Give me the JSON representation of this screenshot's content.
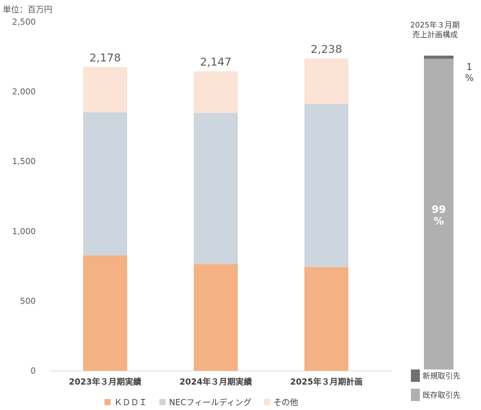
{
  "unit_label": "単位：百万円",
  "chart_data": [
    {
      "type": "bar",
      "stacked": true,
      "categories": [
        "2023年３月期実績",
        "2024年３月期実績",
        "2025年３月期計画"
      ],
      "series": [
        {
          "name": "ＫＤＤＩ",
          "values": [
            828,
            766,
            744
          ],
          "color": "#f4b183"
        },
        {
          "name": "NECフィールディング",
          "values": [
            1025,
            1083,
            1168
          ],
          "color": "#cdd5de"
        },
        {
          "name": "その他",
          "values": [
            325,
            298,
            326
          ],
          "color": "#fbe3d5"
        }
      ],
      "totals": [
        "2,178",
        "2,147",
        "2,238"
      ],
      "ylim": [
        0,
        2500
      ],
      "yticks": [
        0,
        500,
        1000,
        1500,
        2000,
        2500
      ],
      "ytick_labels": [
        "0",
        "500",
        "1,000",
        "1,500",
        "2,000",
        "2,500"
      ],
      "grid": false,
      "legend_position": "bottom"
    },
    {
      "type": "bar",
      "stacked": true,
      "title": "2025年３月期\n売上計画構成",
      "categories": [
        "2025年３月期"
      ],
      "series": [
        {
          "name": "既存取引先",
          "values": [
            99
          ],
          "color": "#b0b0b0",
          "label": "99\n%"
        },
        {
          "name": "新規取引先",
          "values": [
            1
          ],
          "color": "#707070",
          "label": "1\n%"
        }
      ],
      "ylim": [
        0,
        100
      ],
      "legend_position": "bottom"
    }
  ]
}
